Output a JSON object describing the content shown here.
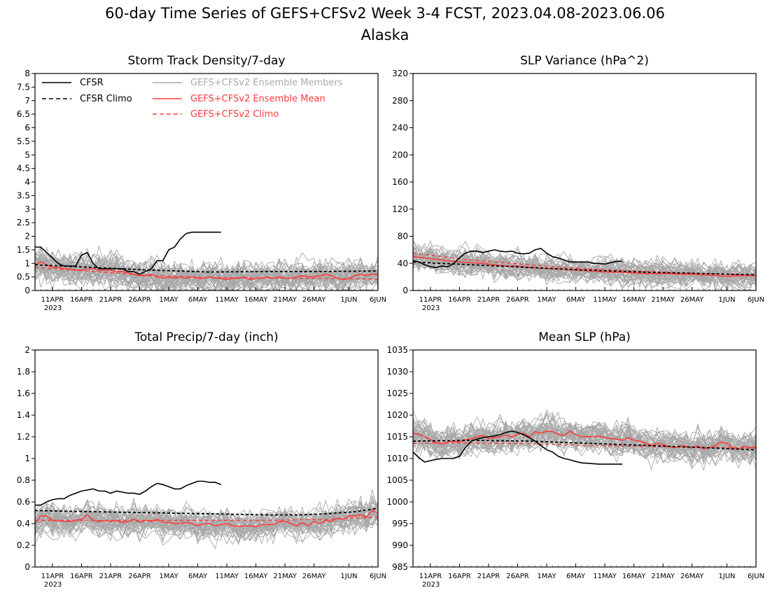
{
  "figure": {
    "title_line1": "60-day Time Series of GEFS+CFSv2 Week 3-4 FCST, 2023.04.08-2023.06.06",
    "title_line2": "Alaska"
  },
  "legend": {
    "cfsr": "CFSR",
    "cfsr_climo": "CFSR Climo",
    "members": "GEFS+CFSv2 Ensemble Members",
    "ens_mean": "GEFS+CFSv2 Ensemble Mean",
    "gefs_climo": "GEFS+CFSv2 Climo"
  },
  "colors": {
    "cfsr": "#000000",
    "members": "#a8a8a8",
    "ens_mean": "#ff3b3b",
    "gefs_climo": "#ff3b3b"
  },
  "x_axis": {
    "ticks": [
      {
        "day": 3,
        "label": "11APR",
        "sub": "2023"
      },
      {
        "day": 8,
        "label": "16APR"
      },
      {
        "day": 13,
        "label": "21APR"
      },
      {
        "day": 18,
        "label": "26APR"
      },
      {
        "day": 23,
        "label": "1MAY"
      },
      {
        "day": 28,
        "label": "6MAY"
      },
      {
        "day": 33,
        "label": "11MAY"
      },
      {
        "day": 38,
        "label": "16MAY"
      },
      {
        "day": 43,
        "label": "21MAY"
      },
      {
        "day": 48,
        "label": "26MAY"
      },
      {
        "day": 54,
        "label": "1JUN"
      },
      {
        "day": 59,
        "label": "6JUN"
      }
    ]
  },
  "chart_data": [
    {
      "type": "line",
      "title": "Storm Track Density/7-day",
      "x_start": "2023-04-08",
      "x_end": "2023-06-06",
      "ylim": [
        0,
        8
      ],
      "yticks": [
        "0",
        "0.5",
        "1",
        "1.5",
        "2",
        "2.5",
        "3",
        "3.5",
        "4",
        "4.5",
        "5",
        "5.5",
        "6",
        "6.5",
        "7",
        "7.5",
        "8"
      ],
      "show_legend": true,
      "series": {
        "cfsr": {
          "x": [
            0,
            1,
            2,
            3,
            4,
            5,
            6,
            7,
            8,
            9,
            10,
            11,
            12,
            13,
            14,
            15,
            16,
            17,
            18,
            19,
            20,
            21,
            22,
            23,
            24,
            25,
            26,
            27,
            28,
            29,
            30,
            31,
            32
          ],
          "y": [
            1.6,
            1.6,
            1.4,
            1.2,
            1.0,
            0.9,
            0.9,
            0.9,
            1.3,
            1.4,
            1.0,
            0.8,
            0.8,
            0.8,
            0.8,
            0.8,
            0.7,
            0.7,
            0.6,
            0.7,
            0.8,
            1.1,
            1.1,
            1.5,
            1.6,
            1.9,
            2.1,
            2.15,
            2.15,
            2.15,
            2.15,
            2.15,
            2.15
          ]
        },
        "cfsr_climo": {
          "x": [
            0,
            10,
            20,
            30,
            40,
            50,
            59
          ],
          "y": [
            0.95,
            0.85,
            0.75,
            0.68,
            0.7,
            0.7,
            0.72
          ]
        },
        "ens_mean": {
          "x": [
            0,
            1,
            2,
            3,
            4,
            5,
            6,
            7,
            8,
            9,
            10,
            11,
            12,
            13,
            14,
            15,
            16,
            17,
            18,
            19,
            20,
            21,
            22,
            23,
            24,
            25,
            26,
            27,
            28,
            29,
            30,
            31,
            32,
            33,
            34,
            35,
            36,
            37,
            38,
            39,
            40,
            41,
            42,
            43,
            44,
            45,
            46,
            47,
            48,
            49,
            50,
            51,
            52,
            53,
            54,
            55,
            56,
            57,
            58,
            59
          ],
          "y": [
            0.95,
            1.05,
            0.95,
            0.85,
            0.85,
            0.8,
            0.8,
            0.75,
            0.75,
            0.8,
            0.8,
            0.75,
            0.75,
            0.75,
            0.7,
            0.7,
            0.65,
            0.6,
            0.55,
            0.55,
            0.6,
            0.5,
            0.45,
            0.5,
            0.45,
            0.5,
            0.45,
            0.5,
            0.45,
            0.45,
            0.5,
            0.45,
            0.45,
            0.4,
            0.45,
            0.45,
            0.5,
            0.4,
            0.45,
            0.45,
            0.5,
            0.45,
            0.5,
            0.45,
            0.45,
            0.5,
            0.55,
            0.5,
            0.5,
            0.55,
            0.6,
            0.55,
            0.45,
            0.4,
            0.45,
            0.55,
            0.6,
            0.55,
            0.6,
            0.6
          ]
        },
        "gefs_climo": {
          "x": [
            0,
            10,
            20,
            30,
            40,
            50,
            59
          ],
          "y": [
            0.85,
            0.7,
            0.55,
            0.48,
            0.46,
            0.44,
            0.42
          ]
        },
        "members": {
          "count": 40,
          "center": "ens_mean",
          "spread": 0.7
        }
      }
    },
    {
      "type": "line",
      "title": "SLP Variance (hPa^2)",
      "x_start": "2023-04-08",
      "x_end": "2023-06-06",
      "ylim": [
        0,
        320
      ],
      "yticks": [
        "0",
        "40",
        "80",
        "120",
        "160",
        "200",
        "240",
        "280",
        "320"
      ],
      "show_legend": false,
      "series": {
        "cfsr": {
          "x": [
            0,
            1,
            2,
            3,
            4,
            5,
            6,
            7,
            8,
            9,
            10,
            11,
            12,
            13,
            14,
            15,
            16,
            17,
            18,
            19,
            20,
            21,
            22,
            23,
            24,
            25,
            26,
            27,
            28,
            29,
            30,
            31,
            32,
            33,
            34,
            35,
            36
          ],
          "y": [
            44,
            42,
            38,
            35,
            34,
            36,
            35,
            40,
            48,
            55,
            58,
            58,
            56,
            58,
            60,
            58,
            57,
            58,
            55,
            54,
            55,
            60,
            62,
            55,
            50,
            48,
            45,
            42,
            42,
            42,
            42,
            40,
            40,
            39,
            41,
            43,
            43
          ]
        },
        "cfsr_climo": {
          "x": [
            0,
            10,
            20,
            30,
            40,
            50,
            59
          ],
          "y": [
            42,
            38,
            34,
            30,
            27,
            25,
            23
          ]
        },
        "ens_mean": {
          "x": [
            0,
            2,
            4,
            6,
            8,
            10,
            12,
            14,
            16,
            18,
            20,
            22,
            24,
            26,
            28,
            30,
            32,
            34,
            36,
            38,
            40,
            42,
            44,
            46,
            48,
            50,
            52,
            54,
            56,
            58,
            59
          ],
          "y": [
            50,
            48,
            46,
            44,
            42,
            41,
            40,
            38,
            36,
            36,
            34,
            33,
            32,
            31,
            30,
            29,
            28,
            27,
            27,
            26,
            25,
            25,
            25,
            24,
            24,
            23,
            22,
            21,
            22,
            22,
            22
          ]
        },
        "gefs_climo": {
          "x": [
            0,
            10,
            20,
            30,
            40,
            50,
            59
          ],
          "y": [
            55,
            45,
            38,
            32,
            28,
            25,
            23
          ]
        },
        "members": {
          "count": 40,
          "center": "ens_mean",
          "spread": 22
        }
      }
    },
    {
      "type": "line",
      "title": "Total Precip/7-day (inch)",
      "x_start": "2023-04-08",
      "x_end": "2023-06-06",
      "ylim": [
        0,
        2
      ],
      "yticks": [
        "0",
        "0.2",
        "0.4",
        "0.6",
        "0.8",
        "1",
        "1.2",
        "1.4",
        "1.6",
        "1.8",
        "2"
      ],
      "show_legend": false,
      "series": {
        "cfsr": {
          "x": [
            0,
            1,
            2,
            3,
            4,
            5,
            6,
            7,
            8,
            9,
            10,
            11,
            12,
            13,
            14,
            15,
            16,
            17,
            18,
            19,
            20,
            21,
            22,
            23,
            24,
            25,
            26,
            27,
            28,
            29,
            30,
            31,
            32
          ],
          "y": [
            0.57,
            0.57,
            0.6,
            0.62,
            0.63,
            0.63,
            0.66,
            0.68,
            0.7,
            0.71,
            0.72,
            0.7,
            0.7,
            0.68,
            0.7,
            0.69,
            0.68,
            0.68,
            0.67,
            0.7,
            0.74,
            0.77,
            0.76,
            0.74,
            0.72,
            0.72,
            0.75,
            0.77,
            0.79,
            0.79,
            0.78,
            0.78,
            0.76
          ]
        },
        "cfsr_climo": {
          "x": [
            0,
            10,
            20,
            30,
            40,
            45,
            50,
            55,
            59
          ],
          "y": [
            0.52,
            0.51,
            0.5,
            0.49,
            0.48,
            0.48,
            0.49,
            0.51,
            0.54
          ]
        },
        "ens_mean": {
          "x": [
            0,
            1,
            2,
            3,
            4,
            5,
            6,
            7,
            8,
            9,
            10,
            11,
            12,
            13,
            14,
            15,
            16,
            17,
            18,
            19,
            20,
            21,
            22,
            23,
            24,
            25,
            26,
            27,
            28,
            29,
            30,
            31,
            32,
            33,
            34,
            35,
            36,
            37,
            38,
            39,
            40,
            41,
            42,
            43,
            44,
            45,
            46,
            47,
            48,
            49,
            50,
            51,
            52,
            53,
            54,
            55,
            56,
            57,
            58,
            59
          ],
          "y": [
            0.4,
            0.47,
            0.47,
            0.43,
            0.43,
            0.42,
            0.42,
            0.43,
            0.44,
            0.48,
            0.43,
            0.42,
            0.43,
            0.42,
            0.43,
            0.41,
            0.42,
            0.44,
            0.41,
            0.43,
            0.42,
            0.44,
            0.41,
            0.41,
            0.4,
            0.4,
            0.41,
            0.4,
            0.38,
            0.4,
            0.4,
            0.38,
            0.39,
            0.4,
            0.38,
            0.37,
            0.38,
            0.38,
            0.37,
            0.39,
            0.39,
            0.39,
            0.42,
            0.42,
            0.4,
            0.38,
            0.41,
            0.38,
            0.42,
            0.4,
            0.43,
            0.42,
            0.45,
            0.44,
            0.47,
            0.47,
            0.48,
            0.46,
            0.52,
            0.5
          ]
        },
        "gefs_climo": {
          "x": [
            0,
            10,
            20,
            30,
            40,
            50,
            59
          ],
          "y": [
            0.43,
            0.43,
            0.43,
            0.43,
            0.43,
            0.44,
            0.46
          ]
        },
        "members": {
          "count": 40,
          "center": "ens_mean",
          "spread": 0.16
        }
      }
    },
    {
      "type": "line",
      "title": "Mean SLP (hPa)",
      "x_start": "2023-04-08",
      "x_end": "2023-06-06",
      "ylim": [
        985,
        1035
      ],
      "yticks": [
        "985",
        "990",
        "995",
        "1000",
        "1005",
        "1010",
        "1015",
        "1020",
        "1025",
        "1030",
        "1035"
      ],
      "show_legend": false,
      "series": {
        "cfsr": {
          "x": [
            0,
            1,
            2,
            3,
            4,
            5,
            6,
            7,
            8,
            9,
            10,
            11,
            12,
            13,
            14,
            15,
            16,
            17,
            18,
            19,
            20,
            21,
            22,
            23,
            24,
            25,
            26,
            27,
            28,
            29,
            30,
            31,
            32,
            33,
            34,
            35,
            36
          ],
          "y": [
            1011.5,
            1010.2,
            1009.2,
            1009.5,
            1009.8,
            1010.0,
            1010.0,
            1010.0,
            1010.5,
            1012.5,
            1014.0,
            1014.5,
            1014.8,
            1015.0,
            1015.2,
            1015.5,
            1016.0,
            1016.3,
            1016.0,
            1015.5,
            1014.8,
            1014.0,
            1013.0,
            1012.0,
            1011.5,
            1010.5,
            1010.0,
            1009.7,
            1009.3,
            1009.0,
            1008.9,
            1008.8,
            1008.7,
            1008.7,
            1008.7,
            1008.7,
            1008.7
          ]
        },
        "cfsr_climo": {
          "x": [
            0,
            10,
            20,
            30,
            40,
            50,
            59
          ],
          "y": [
            1014.0,
            1014.2,
            1014.0,
            1013.5,
            1013.0,
            1012.5,
            1012.0
          ]
        },
        "ens_mean": {
          "x": [
            0,
            1,
            2,
            3,
            4,
            5,
            6,
            7,
            8,
            9,
            10,
            11,
            12,
            13,
            14,
            15,
            16,
            17,
            18,
            19,
            20,
            21,
            22,
            23,
            24,
            25,
            26,
            27,
            28,
            29,
            30,
            31,
            32,
            33,
            34,
            35,
            36,
            37,
            38,
            39,
            40,
            41,
            42,
            43,
            44,
            45,
            46,
            47,
            48,
            49,
            50,
            51,
            52,
            53,
            54,
            55,
            56,
            57,
            58,
            59
          ],
          "y": [
            1015.8,
            1015.6,
            1015.0,
            1014.3,
            1013.6,
            1013.4,
            1013.8,
            1014.0,
            1013.8,
            1014.3,
            1014.5,
            1015.0,
            1015.3,
            1014.6,
            1014.8,
            1015.0,
            1015.4,
            1014.9,
            1015.6,
            1015.8,
            1015.0,
            1016.2,
            1015.8,
            1016.3,
            1016.2,
            1015.6,
            1015.3,
            1016.3,
            1015.5,
            1015.0,
            1015.1,
            1015.0,
            1015.2,
            1014.8,
            1014.6,
            1014.5,
            1014.2,
            1014.8,
            1014.2,
            1014.0,
            1013.5,
            1013.0,
            1013.5,
            1013.2,
            1012.8,
            1012.5,
            1013.0,
            1012.8,
            1012.5,
            1012.9,
            1012.2,
            1012.5,
            1013.0,
            1013.8,
            1013.5,
            1012.5,
            1012.2,
            1012.8,
            1012.5,
            1012.6
          ]
        },
        "gefs_climo": {
          "x": [
            0,
            10,
            20,
            30,
            40,
            50,
            59
          ],
          "y": [
            1013.5,
            1013.6,
            1013.4,
            1013.0,
            1012.8,
            1012.6,
            1012.4
          ]
        },
        "members": {
          "count": 40,
          "center": "ens_mean",
          "spread": 4.2
        }
      }
    }
  ]
}
